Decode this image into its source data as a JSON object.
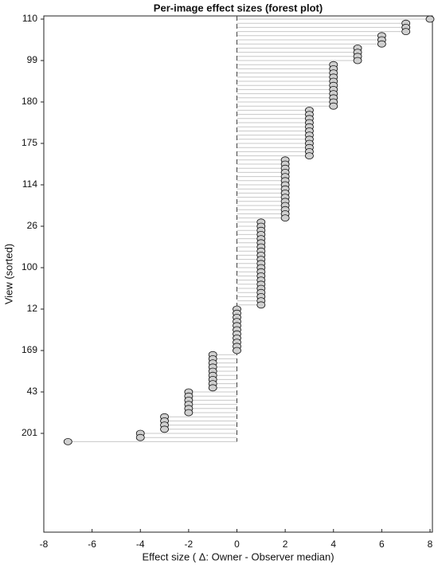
{
  "chart_data": {
    "type": "forest",
    "title": "Per-image effect sizes (forest plot)",
    "x_label": "Effect size ( Δ: Owner - Observer median)",
    "y_label": "View (sorted)",
    "xlim": [
      -8,
      8
    ],
    "xticks": [
      -8,
      -6,
      -4,
      -2,
      0,
      2,
      4,
      6,
      8
    ],
    "marker_color": "#cfcfcf",
    "line_color": "#c8c8c8",
    "categories": [
      "110",
      null,
      null,
      null,
      null,
      null,
      null,
      null,
      null,
      null,
      "99",
      null,
      null,
      null,
      null,
      null,
      null,
      null,
      null,
      null,
      "180",
      null,
      null,
      null,
      null,
      null,
      null,
      null,
      null,
      null,
      "175",
      null,
      null,
      null,
      null,
      null,
      null,
      null,
      null,
      null,
      "114",
      null,
      null,
      null,
      null,
      null,
      null,
      null,
      null,
      null,
      "26",
      null,
      null,
      null,
      null,
      null,
      null,
      null,
      null,
      null,
      "100",
      null,
      null,
      null,
      null,
      null,
      null,
      null,
      null,
      null,
      "12",
      null,
      null,
      null,
      null,
      null,
      null,
      null,
      null,
      null,
      "169",
      null,
      null,
      null,
      null,
      null,
      null,
      null,
      null,
      null,
      "43",
      null,
      null,
      null,
      null,
      null,
      null,
      null,
      null,
      null,
      "201",
      null,
      null
    ],
    "values": [
      8,
      7,
      7,
      7,
      6,
      6,
      6,
      5,
      5,
      5,
      5,
      4,
      4,
      4,
      4,
      4,
      4,
      4,
      4,
      4,
      4,
      4,
      3,
      3,
      3,
      3,
      3,
      3,
      3,
      3,
      3,
      3,
      3,
      3,
      2,
      2,
      2,
      2,
      2,
      2,
      2,
      2,
      2,
      2,
      2,
      2,
      2,
      2,
      2,
      1,
      1,
      1,
      1,
      1,
      1,
      1,
      1,
      1,
      1,
      1,
      1,
      1,
      1,
      1,
      1,
      1,
      1,
      1,
      1,
      1,
      0,
      0,
      0,
      0,
      0,
      0,
      0,
      0,
      0,
      0,
      0,
      -1,
      -1,
      -1,
      -1,
      -1,
      -1,
      -1,
      -1,
      -1,
      -2,
      -2,
      -2,
      -2,
      -2,
      -2,
      -3,
      -3,
      -3,
      -3,
      -4,
      -4,
      -7
    ]
  }
}
